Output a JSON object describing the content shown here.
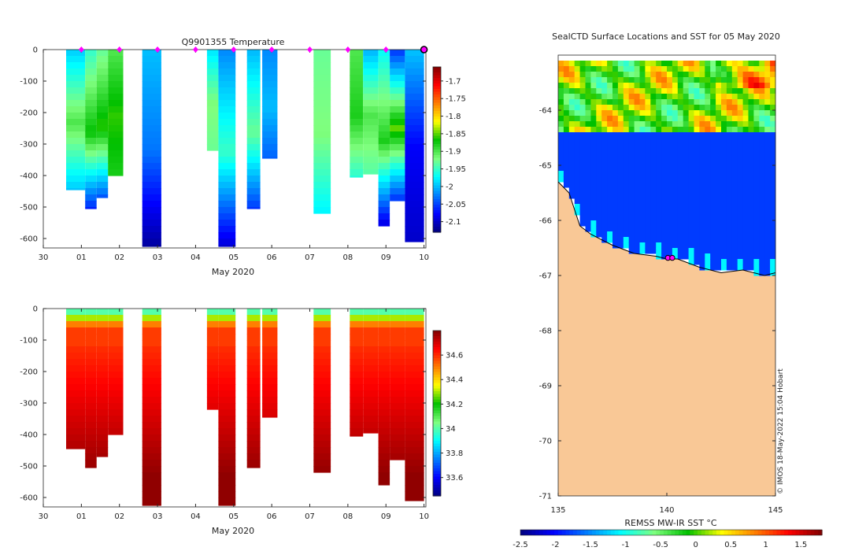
{
  "colors": {
    "background": "#ffffff",
    "land": "#f9c896",
    "coast": "#000000",
    "marker": "#ff00ff",
    "colormap": [
      "#00007f",
      "#0000ff",
      "#007fff",
      "#00ffff",
      "#7fff7f",
      "#00c000",
      "#ffff00",
      "#ff7f00",
      "#ff0000",
      "#7f0000"
    ]
  },
  "chart_data": [
    {
      "type": "heatmap",
      "id": "temperature",
      "title": "Q9901355  Temperature",
      "xlabel": "May 2020",
      "ylabel": "",
      "x_ticks": [
        "30",
        "01",
        "02",
        "03",
        "04",
        "05",
        "06",
        "07",
        "08",
        "09",
        "10"
      ],
      "x_tick_days": [
        0,
        1,
        2,
        3,
        4,
        5,
        6,
        7,
        8,
        9,
        10
      ],
      "xlim": [
        0,
        10.05
      ],
      "ylim": [
        -630,
        0
      ],
      "y_ticks": [
        0,
        -100,
        -200,
        -300,
        -400,
        -500,
        -600
      ],
      "colorbar": {
        "min": -2.13,
        "max": -1.66,
        "ticks": [
          -1.7,
          -1.75,
          -1.8,
          -1.85,
          -1.9,
          -1.95,
          -2,
          -2.05,
          -2.1
        ]
      },
      "markers_days": [
        1,
        2,
        3,
        4,
        5,
        6,
        7,
        8,
        9
      ],
      "last_marker_day": 10,
      "profiles": [
        {
          "x0": 0.6,
          "x1": 1.1,
          "depth": 445,
          "top": -1.99,
          "mid": -1.9,
          "deep": -2.0
        },
        {
          "x0": 1.1,
          "x1": 1.4,
          "depth": 505,
          "top": -1.95,
          "mid": -1.87,
          "deep": -2.07
        },
        {
          "x0": 1.4,
          "x1": 1.7,
          "depth": 470,
          "top": -1.93,
          "mid": -1.86,
          "deep": -2.05
        },
        {
          "x0": 1.7,
          "x1": 2.1,
          "depth": 400,
          "top": -1.9,
          "mid": -1.86,
          "deep": -1.88
        },
        {
          "x0": 2.6,
          "x1": 3.1,
          "depth": 625,
          "top": -2.0,
          "mid": -2.03,
          "deep": -2.12
        },
        {
          "x0": 4.3,
          "x1": 4.6,
          "depth": 320,
          "top": -1.98,
          "mid": -1.92,
          "deep": -1.93
        },
        {
          "x0": 4.6,
          "x1": 5.05,
          "depth": 625,
          "top": -2.02,
          "mid": -1.95,
          "deep": -2.1
        },
        {
          "x0": 5.35,
          "x1": 5.7,
          "depth": 505,
          "top": -2.0,
          "mid": -1.93,
          "deep": -2.06
        },
        {
          "x0": 5.75,
          "x1": 6.15,
          "depth": 345,
          "top": -2.02,
          "mid": -2.0,
          "deep": -2.04
        },
        {
          "x0": 7.1,
          "x1": 7.55,
          "depth": 520,
          "top": -1.93,
          "mid": -1.92,
          "deep": -1.98
        },
        {
          "x0": 8.05,
          "x1": 8.4,
          "depth": 405,
          "top": -1.9,
          "mid": -1.88,
          "deep": -1.96
        },
        {
          "x0": 8.4,
          "x1": 8.8,
          "depth": 395,
          "top": -2.0,
          "mid": -1.9,
          "deep": -1.94
        },
        {
          "x0": 8.8,
          "x1": 9.1,
          "depth": 560,
          "top": -1.97,
          "mid": -1.88,
          "deep": -2.1
        },
        {
          "x0": 9.1,
          "x1": 9.5,
          "depth": 480,
          "top": -2.05,
          "mid": -1.85,
          "deep": -2.07
        },
        {
          "x0": 9.5,
          "x1": 10.0,
          "depth": 610,
          "top": -2.0,
          "mid": -2.08,
          "deep": -2.1
        }
      ]
    },
    {
      "type": "heatmap",
      "id": "salinity",
      "title": "",
      "xlabel": "May 2020",
      "ylabel": "",
      "x_ticks": [
        "30",
        "01",
        "02",
        "03",
        "04",
        "05",
        "06",
        "07",
        "08",
        "09",
        "10"
      ],
      "x_tick_days": [
        0,
        1,
        2,
        3,
        4,
        5,
        6,
        7,
        8,
        9,
        10
      ],
      "xlim": [
        0,
        10.05
      ],
      "ylim": [
        -630,
        0
      ],
      "y_ticks": [
        0,
        -100,
        -200,
        -300,
        -400,
        -500,
        -600
      ],
      "colorbar": {
        "min": 33.45,
        "max": 34.8,
        "ticks": [
          34.6,
          34.4,
          34.2,
          34,
          33.8,
          33.6
        ]
      },
      "profiles": [
        {
          "x0": 0.6,
          "x1": 1.1,
          "depth": 445
        },
        {
          "x0": 1.1,
          "x1": 1.4,
          "depth": 505
        },
        {
          "x0": 1.4,
          "x1": 1.7,
          "depth": 470
        },
        {
          "x0": 1.7,
          "x1": 2.1,
          "depth": 400
        },
        {
          "x0": 2.6,
          "x1": 3.1,
          "depth": 625
        },
        {
          "x0": 4.3,
          "x1": 4.6,
          "depth": 320
        },
        {
          "x0": 4.6,
          "x1": 5.05,
          "depth": 625
        },
        {
          "x0": 5.35,
          "x1": 5.7,
          "depth": 505
        },
        {
          "x0": 5.75,
          "x1": 6.15,
          "depth": 345
        },
        {
          "x0": 7.1,
          "x1": 7.55,
          "depth": 520
        },
        {
          "x0": 8.05,
          "x1": 8.4,
          "depth": 405
        },
        {
          "x0": 8.4,
          "x1": 8.8,
          "depth": 395
        },
        {
          "x0": 8.8,
          "x1": 9.1,
          "depth": 560
        },
        {
          "x0": 9.1,
          "x1": 9.5,
          "depth": 480
        },
        {
          "x0": 9.5,
          "x1": 10.0,
          "depth": 610
        }
      ]
    },
    {
      "type": "heatmap",
      "id": "sst_map",
      "title": "SealCTD Surface Locations and SST for 05 May 2020",
      "xlabel": "",
      "ylabel": "",
      "xlim": [
        135,
        145
      ],
      "ylim": [
        -71,
        -63
      ],
      "x_ticks": [
        135,
        140,
        145
      ],
      "y_ticks": [
        -64,
        -65,
        -66,
        -67,
        -68,
        -69,
        -70,
        -71
      ],
      "data_top_lat": -63.1,
      "ice_edge_lat": -64.35,
      "ice_value": -1.8,
      "open_water_range": [
        -0.9,
        0.9
      ],
      "coast": [
        [
          135,
          -65.3
        ],
        [
          135.5,
          -65.5
        ],
        [
          136,
          -66.1
        ],
        [
          136.5,
          -66.25
        ],
        [
          137.5,
          -66.45
        ],
        [
          138.5,
          -66.6
        ],
        [
          139.5,
          -66.65
        ],
        [
          140,
          -66.7
        ],
        [
          140.5,
          -66.7
        ],
        [
          141.5,
          -66.85
        ],
        [
          142.5,
          -66.95
        ],
        [
          143.5,
          -66.9
        ],
        [
          144.5,
          -67.0
        ],
        [
          145,
          -66.95
        ]
      ],
      "seal_positions": [
        [
          140.05,
          -66.68
        ],
        [
          140.25,
          -66.68
        ]
      ],
      "annotation": "© IMOS 18-May-2022 15:04 Hobart",
      "colorbar": {
        "label": "REMSS MW-IR SST °C",
        "min": -2.5,
        "max": 1.8,
        "ticks": [
          -2.5,
          -2,
          -1.5,
          -1,
          -0.5,
          0,
          0.5,
          1,
          1.5
        ]
      }
    }
  ]
}
